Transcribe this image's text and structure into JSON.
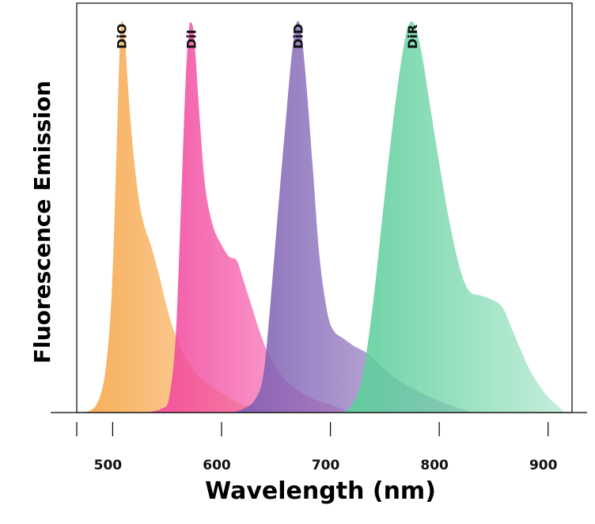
{
  "chart_data": {
    "type": "area",
    "title": "",
    "xlabel": "Wavelength (nm)",
    "ylabel": "Fluorescence Emission",
    "xlim": [
      467,
      922
    ],
    "ylim": [
      0,
      1.05
    ],
    "x_ticks": [
      500,
      600,
      700,
      800,
      900
    ],
    "grid": false,
    "legend": "labels above peaks",
    "series": [
      {
        "name": "DiO",
        "color": "#f7a94f",
        "peak": 508,
        "points": [
          [
            474,
            0
          ],
          [
            485,
            0.02
          ],
          [
            493,
            0.1
          ],
          [
            499,
            0.3
          ],
          [
            503,
            0.62
          ],
          [
            506,
            0.9
          ],
          [
            508,
            1.0
          ],
          [
            511,
            0.97
          ],
          [
            515,
            0.8
          ],
          [
            520,
            0.64
          ],
          [
            525,
            0.53
          ],
          [
            530,
            0.47
          ],
          [
            535,
            0.43
          ],
          [
            542,
            0.36
          ],
          [
            548,
            0.29
          ],
          [
            555,
            0.22
          ],
          [
            565,
            0.15
          ],
          [
            580,
            0.09
          ],
          [
            600,
            0.05
          ],
          [
            620,
            0.02
          ],
          [
            650,
            0
          ]
        ]
      },
      {
        "name": "DiI",
        "color": "#f2499f",
        "peak": 572,
        "points": [
          [
            530,
            0
          ],
          [
            545,
            0.01
          ],
          [
            552,
            0.04
          ],
          [
            558,
            0.2
          ],
          [
            563,
            0.55
          ],
          [
            567,
            0.85
          ],
          [
            570,
            0.98
          ],
          [
            572,
            1.0
          ],
          [
            575,
            0.96
          ],
          [
            580,
            0.75
          ],
          [
            585,
            0.58
          ],
          [
            592,
            0.48
          ],
          [
            600,
            0.43
          ],
          [
            607,
            0.4
          ],
          [
            614,
            0.39
          ],
          [
            620,
            0.34
          ],
          [
            628,
            0.27
          ],
          [
            636,
            0.2
          ],
          [
            645,
            0.14
          ],
          [
            660,
            0.08
          ],
          [
            680,
            0.04
          ],
          [
            700,
            0.02
          ],
          [
            720,
            0
          ]
        ]
      },
      {
        "name": "DiD",
        "color": "#8062b4",
        "peak": 670,
        "points": [
          [
            610,
            0
          ],
          [
            620,
            0.01
          ],
          [
            630,
            0.03
          ],
          [
            638,
            0.09
          ],
          [
            644,
            0.25
          ],
          [
            652,
            0.52
          ],
          [
            660,
            0.78
          ],
          [
            665,
            0.93
          ],
          [
            669,
            1.0
          ],
          [
            673,
            0.98
          ],
          [
            678,
            0.84
          ],
          [
            684,
            0.62
          ],
          [
            690,
            0.4
          ],
          [
            697,
            0.26
          ],
          [
            703,
            0.21
          ],
          [
            712,
            0.19
          ],
          [
            722,
            0.17
          ],
          [
            735,
            0.15
          ],
          [
            750,
            0.11
          ],
          [
            770,
            0.07
          ],
          [
            800,
            0.03
          ],
          [
            830,
            0
          ]
        ]
      },
      {
        "name": "DiR",
        "color": "#5ecf9c",
        "peak": 775,
        "points": [
          [
            710,
            0
          ],
          [
            720,
            0.02
          ],
          [
            730,
            0.1
          ],
          [
            740,
            0.3
          ],
          [
            750,
            0.56
          ],
          [
            760,
            0.8
          ],
          [
            768,
            0.95
          ],
          [
            773,
            1.0
          ],
          [
            778,
            0.99
          ],
          [
            784,
            0.92
          ],
          [
            792,
            0.78
          ],
          [
            800,
            0.64
          ],
          [
            810,
            0.48
          ],
          [
            820,
            0.36
          ],
          [
            828,
            0.31
          ],
          [
            838,
            0.3
          ],
          [
            848,
            0.29
          ],
          [
            858,
            0.27
          ],
          [
            866,
            0.22
          ],
          [
            875,
            0.16
          ],
          [
            885,
            0.1
          ],
          [
            900,
            0.04
          ],
          [
            912,
            0.01
          ],
          [
            915,
            0
          ]
        ]
      }
    ]
  }
}
